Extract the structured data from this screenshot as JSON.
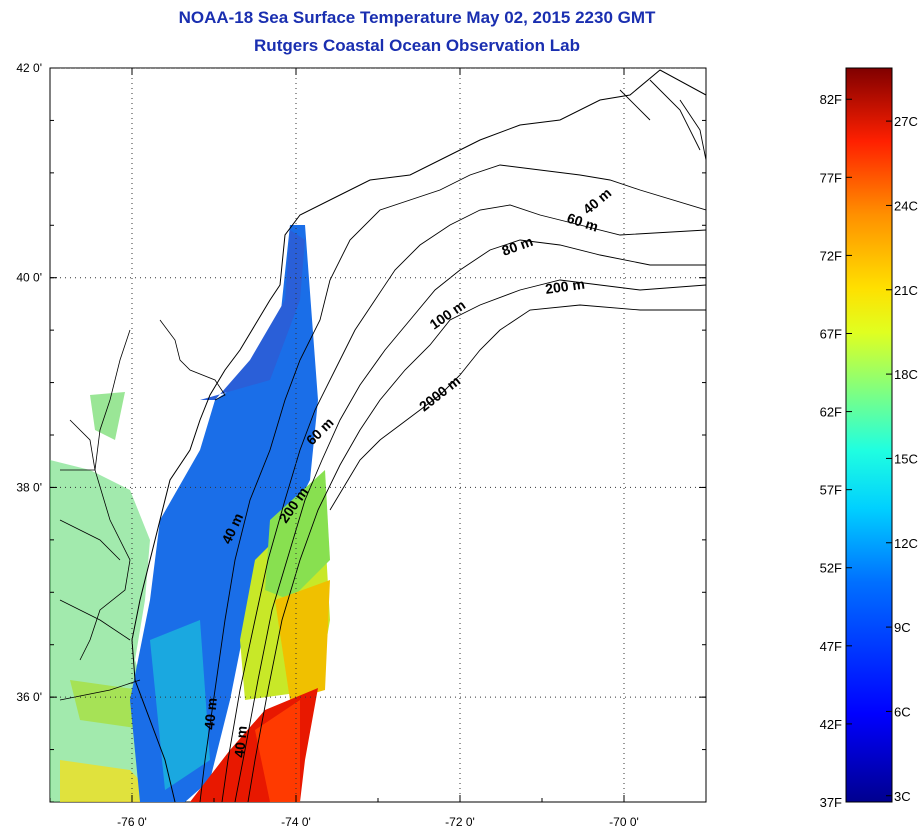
{
  "title": "NOAA-18 Sea Surface Temperature May 02, 2015 2230 GMT",
  "subtitle": "Rutgers Coastal Ocean Observation Lab",
  "map": {
    "lat_ticks": [
      {
        "value": 42,
        "label": "42 0'"
      },
      {
        "value": 40,
        "label": "40 0'"
      },
      {
        "value": 38,
        "label": "38 0'"
      },
      {
        "value": 36,
        "label": "36 0'"
      }
    ],
    "lon_ticks": [
      {
        "value": -76,
        "label": "-76 0'"
      },
      {
        "value": -74,
        "label": "-74 0'"
      },
      {
        "value": -72,
        "label": "-72 0'"
      },
      {
        "value": -70,
        "label": "-70 0'"
      }
    ],
    "lon_range": [
      -77.0,
      -69.0
    ],
    "lat_range": [
      35.0,
      42.0
    ],
    "grid": "dotted",
    "contour_labels": [
      "40 m",
      "60 m",
      "80 m",
      "200 m",
      "100 m",
      "2000 m",
      "60 m",
      "200 m",
      "40 m",
      "40 m"
    ]
  },
  "colorbar": {
    "f_labels": [
      "82F",
      "77F",
      "72F",
      "67F",
      "62F",
      "57F",
      "52F",
      "47F",
      "42F",
      "37F"
    ],
    "c_labels": [
      "27C",
      "24C",
      "21C",
      "18C",
      "15C",
      "12C",
      "9C",
      "6C",
      "3C"
    ],
    "colors": {
      "low": "#00008f",
      "blue": "#0050ff",
      "cyan": "#00ffff",
      "green": "#80ff80",
      "yellow": "#ffff00",
      "orange": "#ff8000",
      "red": "#ff0000",
      "high": "#800000"
    }
  }
}
